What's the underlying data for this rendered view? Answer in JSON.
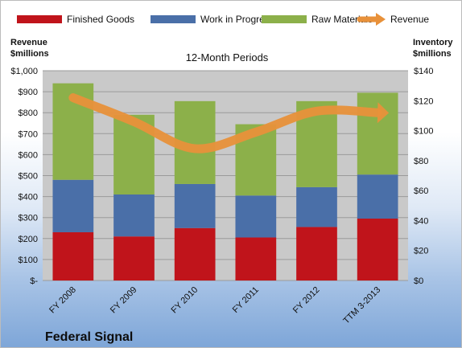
{
  "chart_data": {
    "type": "bar",
    "stacked": true,
    "subtitle": "12-Month Periods",
    "company": "Federal Signal",
    "categories": [
      "FY 2008",
      "FY 2009",
      "FY 2010",
      "FY 2011",
      "FY 2012",
      "TTM 3-2013"
    ],
    "series": [
      {
        "name": "Finished Goods",
        "axis": "left",
        "values": [
          230,
          210,
          250,
          205,
          255,
          295
        ],
        "color": "#c0141b"
      },
      {
        "name": "Work in Progress",
        "axis": "left",
        "values": [
          250,
          200,
          210,
          200,
          190,
          210
        ],
        "color": "#4a6fa8"
      },
      {
        "name": "Raw Materials",
        "axis": "left",
        "values": [
          460,
          380,
          395,
          340,
          410,
          390
        ],
        "color": "#8cb04a"
      }
    ],
    "line_series": {
      "name": "Revenue",
      "axis": "right",
      "values": [
        122,
        106,
        88,
        99,
        113,
        112
      ],
      "color": "#e8913a"
    },
    "left_axis": {
      "title_line1": "Revenue",
      "title_line2": "$millions",
      "ylim": [
        0,
        1000
      ],
      "ticks": [
        0,
        100,
        200,
        300,
        400,
        500,
        600,
        700,
        800,
        900,
        1000
      ],
      "tick_labels": [
        "$-",
        "$100",
        "$200",
        "$300",
        "$400",
        "$500",
        "$600",
        "$700",
        "$800",
        "$900",
        "$1,000"
      ]
    },
    "right_axis": {
      "title_line1": "Inventory",
      "title_line2": "$millions",
      "ylim": [
        0,
        140
      ],
      "ticks": [
        0,
        20,
        40,
        60,
        80,
        100,
        120,
        140
      ],
      "tick_labels": [
        "$0",
        "$20",
        "$40",
        "$60",
        "$80",
        "$100",
        "$120",
        "$140"
      ]
    },
    "grid": true,
    "legend": "top"
  }
}
